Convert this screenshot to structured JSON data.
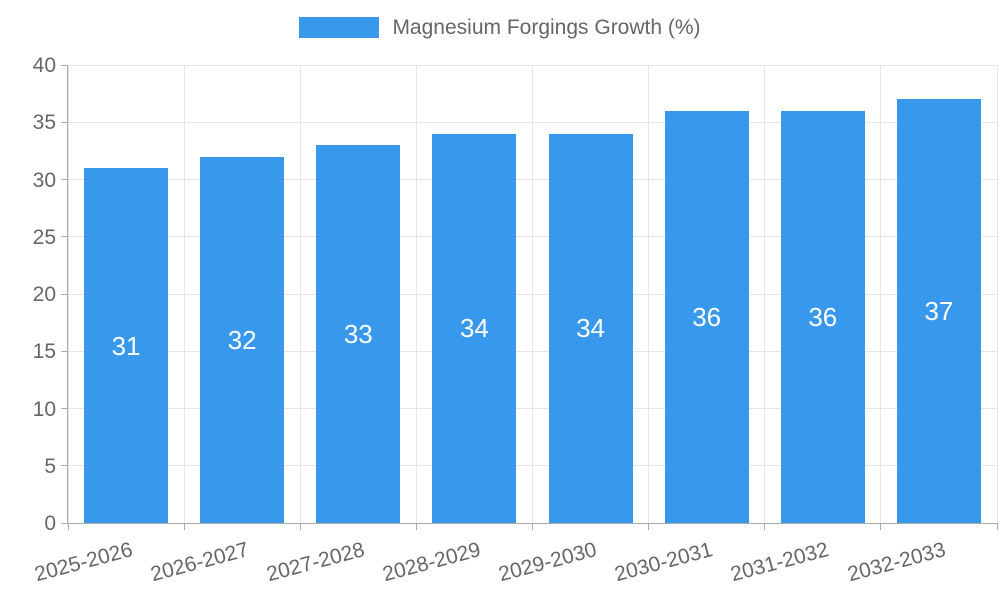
{
  "legend": {
    "label": "Magnesium Forgings Growth (%)"
  },
  "chart_data": {
    "type": "bar",
    "title": "",
    "series": [
      {
        "name": "Magnesium Forgings Growth (%)",
        "values": [
          31,
          32,
          33,
          34,
          34,
          36,
          36,
          37
        ]
      }
    ],
    "categories": [
      "2025-2026",
      "2026-2027",
      "2027-2028",
      "2028-2029",
      "2029-2030",
      "2030-2031",
      "2031-2032",
      "2032-2033"
    ],
    "values": [
      31,
      32,
      33,
      34,
      34,
      36,
      36,
      37
    ],
    "data_labels": [
      "31",
      "32",
      "33",
      "34",
      "34",
      "36",
      "36",
      "37"
    ],
    "xlabel": "",
    "ylabel": "",
    "ylim": [
      0,
      40
    ],
    "yticks": [
      0,
      5,
      10,
      15,
      20,
      25,
      30,
      35,
      40
    ],
    "grid": true,
    "legend_position": "top",
    "x_label_rotation_deg": -15,
    "colors": {
      "bar": "#3898ec",
      "bar_value_label": "#ffffff",
      "axis_text": "#666666",
      "gridline": "#e5e5e5",
      "axis_line": "#a9a9a9",
      "background": "#ffffff"
    }
  }
}
